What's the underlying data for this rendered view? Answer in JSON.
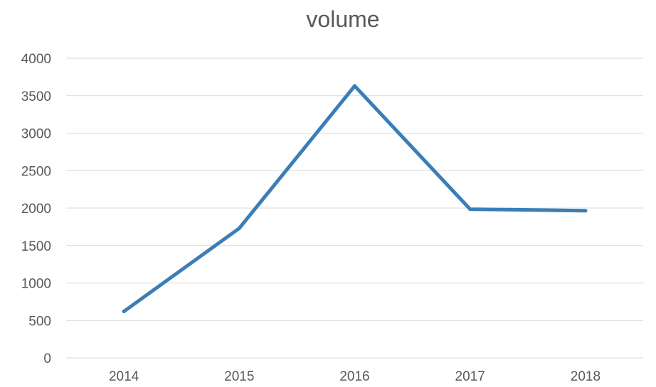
{
  "chart_data": {
    "type": "line",
    "title": "volume",
    "xlabel": "",
    "ylabel": "",
    "categories": [
      "2014",
      "2015",
      "2016",
      "2017",
      "2018"
    ],
    "series": [
      {
        "values": [
          620,
          1730,
          3630,
          1985,
          1965
        ],
        "color": "#3b7db8"
      }
    ],
    "ylim": [
      0,
      4000
    ],
    "yticks": [
      0,
      500,
      1000,
      1500,
      2000,
      2500,
      3000,
      3500,
      4000
    ],
    "grid": true,
    "legend": "none"
  }
}
